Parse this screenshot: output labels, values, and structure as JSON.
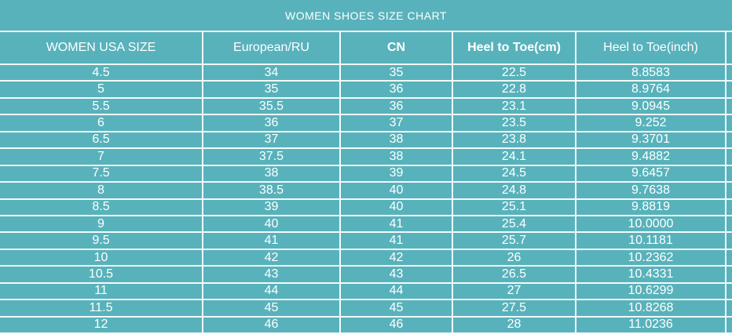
{
  "chart_data": {
    "type": "table",
    "title": "WOMEN SHOES SIZE CHART",
    "columns": [
      {
        "label": "WOMEN USA SIZE",
        "bold": false
      },
      {
        "label": "European/RU",
        "bold": false
      },
      {
        "label": "CN",
        "bold": true
      },
      {
        "label": "Heel to Toe(cm)",
        "bold": true
      },
      {
        "label": "Heel to Toe(inch)",
        "bold": false
      }
    ],
    "rows": [
      [
        "4.5",
        "34",
        "35",
        "22.5",
        "8.8583"
      ],
      [
        "5",
        "35",
        "36",
        "22.8",
        "8.9764"
      ],
      [
        "5.5",
        "35.5",
        "36",
        "23.1",
        "9.0945"
      ],
      [
        "6",
        "36",
        "37",
        "23.5",
        "9.252"
      ],
      [
        "6.5",
        "37",
        "38",
        "23.8",
        "9.3701"
      ],
      [
        "7",
        "37.5",
        "38",
        "24.1",
        "9.4882"
      ],
      [
        "7.5",
        "38",
        "39",
        "24.5",
        "9.6457"
      ],
      [
        "8",
        "38.5",
        "40",
        "24.8",
        "9.7638"
      ],
      [
        "8.5",
        "39",
        "40",
        "25.1",
        "9.8819"
      ],
      [
        "9",
        "40",
        "41",
        "25.4",
        "10.0000"
      ],
      [
        "9.5",
        "41",
        "41",
        "25.7",
        "10.1181"
      ],
      [
        "10",
        "42",
        "42",
        "26",
        "10.2362"
      ],
      [
        "10.5",
        "43",
        "43",
        "26.5",
        "10.4331"
      ],
      [
        "11",
        "44",
        "44",
        "27",
        "10.6299"
      ],
      [
        "11.5",
        "45",
        "45",
        "27.5",
        "10.8268"
      ],
      [
        "12",
        "46",
        "46",
        "28",
        "11.0236"
      ]
    ]
  },
  "colors": {
    "background_teal": "#58b2bb",
    "grid_line": "#f2fafa",
    "text": "#ffffff"
  }
}
